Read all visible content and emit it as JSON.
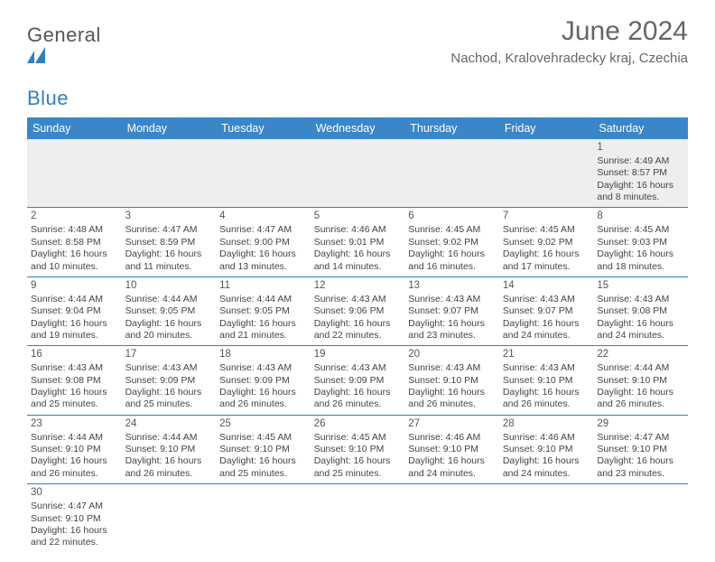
{
  "brand": {
    "name_part1": "General",
    "name_part2": "Blue",
    "mark_color": "#2f7fc2",
    "text_color": "#555555"
  },
  "title": "June 2024",
  "location": "Nachod, Kralovehradecky kraj, Czechia",
  "header_bg": "#3a86c8",
  "row_border": "#2f7fc2",
  "weekdays": [
    "Sunday",
    "Monday",
    "Tuesday",
    "Wednesday",
    "Thursday",
    "Friday",
    "Saturday"
  ],
  "weeks": [
    [
      null,
      null,
      null,
      null,
      null,
      null,
      {
        "n": "1",
        "sr": "Sunrise: 4:49 AM",
        "ss": "Sunset: 8:57 PM",
        "d1": "Daylight: 16 hours",
        "d2": "and 8 minutes."
      }
    ],
    [
      {
        "n": "2",
        "sr": "Sunrise: 4:48 AM",
        "ss": "Sunset: 8:58 PM",
        "d1": "Daylight: 16 hours",
        "d2": "and 10 minutes."
      },
      {
        "n": "3",
        "sr": "Sunrise: 4:47 AM",
        "ss": "Sunset: 8:59 PM",
        "d1": "Daylight: 16 hours",
        "d2": "and 11 minutes."
      },
      {
        "n": "4",
        "sr": "Sunrise: 4:47 AM",
        "ss": "Sunset: 9:00 PM",
        "d1": "Daylight: 16 hours",
        "d2": "and 13 minutes."
      },
      {
        "n": "5",
        "sr": "Sunrise: 4:46 AM",
        "ss": "Sunset: 9:01 PM",
        "d1": "Daylight: 16 hours",
        "d2": "and 14 minutes."
      },
      {
        "n": "6",
        "sr": "Sunrise: 4:45 AM",
        "ss": "Sunset: 9:02 PM",
        "d1": "Daylight: 16 hours",
        "d2": "and 16 minutes."
      },
      {
        "n": "7",
        "sr": "Sunrise: 4:45 AM",
        "ss": "Sunset: 9:02 PM",
        "d1": "Daylight: 16 hours",
        "d2": "and 17 minutes."
      },
      {
        "n": "8",
        "sr": "Sunrise: 4:45 AM",
        "ss": "Sunset: 9:03 PM",
        "d1": "Daylight: 16 hours",
        "d2": "and 18 minutes."
      }
    ],
    [
      {
        "n": "9",
        "sr": "Sunrise: 4:44 AM",
        "ss": "Sunset: 9:04 PM",
        "d1": "Daylight: 16 hours",
        "d2": "and 19 minutes."
      },
      {
        "n": "10",
        "sr": "Sunrise: 4:44 AM",
        "ss": "Sunset: 9:05 PM",
        "d1": "Daylight: 16 hours",
        "d2": "and 20 minutes."
      },
      {
        "n": "11",
        "sr": "Sunrise: 4:44 AM",
        "ss": "Sunset: 9:05 PM",
        "d1": "Daylight: 16 hours",
        "d2": "and 21 minutes."
      },
      {
        "n": "12",
        "sr": "Sunrise: 4:43 AM",
        "ss": "Sunset: 9:06 PM",
        "d1": "Daylight: 16 hours",
        "d2": "and 22 minutes."
      },
      {
        "n": "13",
        "sr": "Sunrise: 4:43 AM",
        "ss": "Sunset: 9:07 PM",
        "d1": "Daylight: 16 hours",
        "d2": "and 23 minutes."
      },
      {
        "n": "14",
        "sr": "Sunrise: 4:43 AM",
        "ss": "Sunset: 9:07 PM",
        "d1": "Daylight: 16 hours",
        "d2": "and 24 minutes."
      },
      {
        "n": "15",
        "sr": "Sunrise: 4:43 AM",
        "ss": "Sunset: 9:08 PM",
        "d1": "Daylight: 16 hours",
        "d2": "and 24 minutes."
      }
    ],
    [
      {
        "n": "16",
        "sr": "Sunrise: 4:43 AM",
        "ss": "Sunset: 9:08 PM",
        "d1": "Daylight: 16 hours",
        "d2": "and 25 minutes."
      },
      {
        "n": "17",
        "sr": "Sunrise: 4:43 AM",
        "ss": "Sunset: 9:09 PM",
        "d1": "Daylight: 16 hours",
        "d2": "and 25 minutes."
      },
      {
        "n": "18",
        "sr": "Sunrise: 4:43 AM",
        "ss": "Sunset: 9:09 PM",
        "d1": "Daylight: 16 hours",
        "d2": "and 26 minutes."
      },
      {
        "n": "19",
        "sr": "Sunrise: 4:43 AM",
        "ss": "Sunset: 9:09 PM",
        "d1": "Daylight: 16 hours",
        "d2": "and 26 minutes."
      },
      {
        "n": "20",
        "sr": "Sunrise: 4:43 AM",
        "ss": "Sunset: 9:10 PM",
        "d1": "Daylight: 16 hours",
        "d2": "and 26 minutes."
      },
      {
        "n": "21",
        "sr": "Sunrise: 4:43 AM",
        "ss": "Sunset: 9:10 PM",
        "d1": "Daylight: 16 hours",
        "d2": "and 26 minutes."
      },
      {
        "n": "22",
        "sr": "Sunrise: 4:44 AM",
        "ss": "Sunset: 9:10 PM",
        "d1": "Daylight: 16 hours",
        "d2": "and 26 minutes."
      }
    ],
    [
      {
        "n": "23",
        "sr": "Sunrise: 4:44 AM",
        "ss": "Sunset: 9:10 PM",
        "d1": "Daylight: 16 hours",
        "d2": "and 26 minutes."
      },
      {
        "n": "24",
        "sr": "Sunrise: 4:44 AM",
        "ss": "Sunset: 9:10 PM",
        "d1": "Daylight: 16 hours",
        "d2": "and 26 minutes."
      },
      {
        "n": "25",
        "sr": "Sunrise: 4:45 AM",
        "ss": "Sunset: 9:10 PM",
        "d1": "Daylight: 16 hours",
        "d2": "and 25 minutes."
      },
      {
        "n": "26",
        "sr": "Sunrise: 4:45 AM",
        "ss": "Sunset: 9:10 PM",
        "d1": "Daylight: 16 hours",
        "d2": "and 25 minutes."
      },
      {
        "n": "27",
        "sr": "Sunrise: 4:46 AM",
        "ss": "Sunset: 9:10 PM",
        "d1": "Daylight: 16 hours",
        "d2": "and 24 minutes."
      },
      {
        "n": "28",
        "sr": "Sunrise: 4:46 AM",
        "ss": "Sunset: 9:10 PM",
        "d1": "Daylight: 16 hours",
        "d2": "and 24 minutes."
      },
      {
        "n": "29",
        "sr": "Sunrise: 4:47 AM",
        "ss": "Sunset: 9:10 PM",
        "d1": "Daylight: 16 hours",
        "d2": "and 23 minutes."
      }
    ],
    [
      {
        "n": "30",
        "sr": "Sunrise: 4:47 AM",
        "ss": "Sunset: 9:10 PM",
        "d1": "Daylight: 16 hours",
        "d2": "and 22 minutes."
      },
      null,
      null,
      null,
      null,
      null,
      null
    ]
  ]
}
